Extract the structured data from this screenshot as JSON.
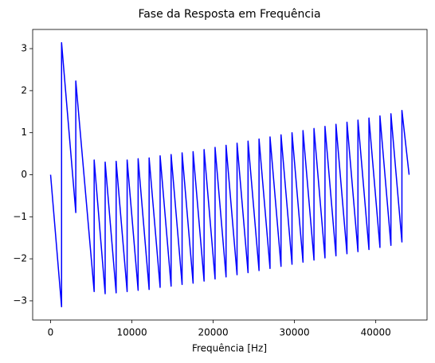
{
  "chart_data": {
    "type": "line",
    "title": "Fase da Resposta em Frequência",
    "x_label": "Frequência [Hz]",
    "series": [
      {
        "color": "#0000ff",
        "x": [
          0,
          1350,
          1350,
          3100,
          3100,
          5360,
          5360,
          6712,
          6712,
          8064,
          8064,
          9416,
          9416,
          10768,
          10768,
          12120,
          12120,
          13472,
          13472,
          14824,
          14824,
          16176,
          16176,
          17528,
          17528,
          18880,
          18880,
          20232,
          20232,
          21584,
          21584,
          22936,
          22936,
          24288,
          24288,
          25640,
          25640,
          26992,
          26992,
          28344,
          28344,
          29696,
          29696,
          31048,
          31048,
          32400,
          32400,
          33752,
          33752,
          35104,
          35104,
          36456,
          36456,
          37808,
          37808,
          39160,
          39160,
          40512,
          40512,
          41864,
          41864,
          43216,
          43216,
          44100
        ],
        "values": [
          0,
          -3.14,
          3.14,
          -0.9,
          2.23,
          -2.78,
          0.35,
          -2.83,
          0.3,
          -2.81,
          0.32,
          -2.78,
          0.35,
          -2.75,
          0.38,
          -2.73,
          0.4,
          -2.68,
          0.45,
          -2.65,
          0.48,
          -2.61,
          0.52,
          -2.58,
          0.55,
          -2.53,
          0.6,
          -2.48,
          0.65,
          -2.43,
          0.7,
          -2.38,
          0.75,
          -2.33,
          0.8,
          -2.28,
          0.85,
          -2.23,
          0.9,
          -2.18,
          0.95,
          -2.13,
          1.0,
          -2.08,
          1.05,
          -2.03,
          1.1,
          -1.98,
          1.15,
          -1.93,
          1.2,
          -1.88,
          1.25,
          -1.83,
          1.3,
          -1.78,
          1.35,
          -1.73,
          1.4,
          -1.68,
          1.45,
          -1.6,
          1.53,
          0
        ]
      }
    ],
    "xlim": [
      -2205,
      46305
    ],
    "xticks": [
      0,
      10000,
      20000,
      30000,
      40000
    ],
    "ylim": [
      -3.456,
      3.456
    ],
    "yticks": [
      {
        "value": -3,
        "label": "−3"
      },
      {
        "value": -2,
        "label": "−2"
      },
      {
        "value": -1,
        "label": "−1"
      },
      0,
      1,
      2,
      3
    ],
    "grid": false
  }
}
